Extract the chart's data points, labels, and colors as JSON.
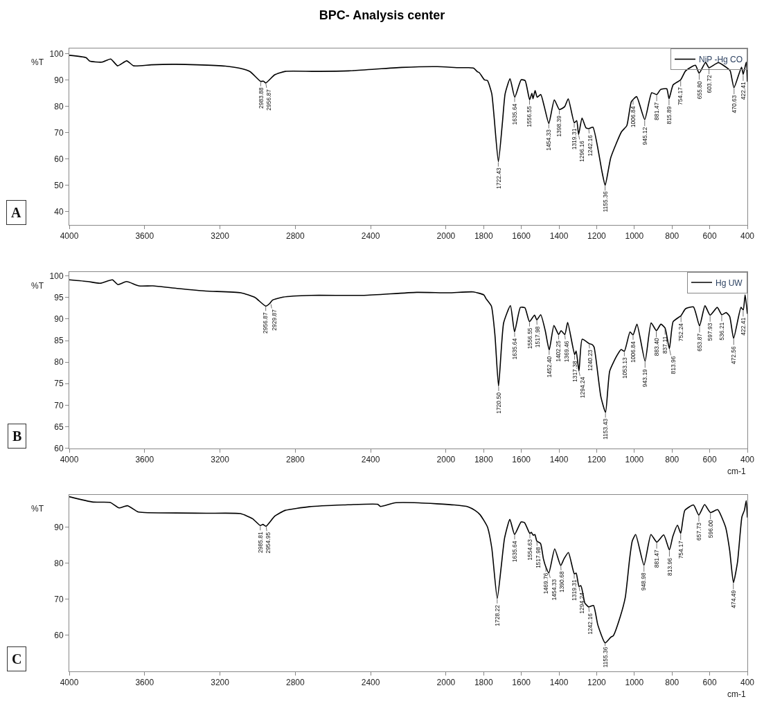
{
  "chart_data": [
    {
      "type": "line",
      "title": "BPC- Analysis center",
      "ylabel": "%T",
      "legend": "top right",
      "xlim": [
        4000,
        400
      ],
      "xticks": [
        4000,
        3600,
        3200,
        2800,
        2400,
        2000,
        1800,
        1600,
        1400,
        1200,
        1000,
        800,
        600,
        400
      ],
      "ylim": [
        35,
        102
      ],
      "yticks": [
        40,
        50,
        60,
        70,
        80,
        90,
        100
      ],
      "x": [
        4000,
        3911,
        3892,
        3827,
        3780,
        3743,
        3695,
        3658,
        3565,
        3453,
        3322,
        3171,
        3096,
        3040,
        2984,
        2969,
        2957,
        2909,
        2853,
        2703,
        2516,
        2234,
        2046,
        1929,
        1881,
        1853,
        1834,
        1823,
        1796,
        1780,
        1757,
        1722,
        1700,
        1686,
        1660,
        1635,
        1601,
        1580,
        1556,
        1544,
        1538,
        1527,
        1516,
        1497,
        1478,
        1454,
        1425,
        1398,
        1370,
        1351,
        1319,
        1306,
        1296,
        1278,
        1257,
        1242,
        1220,
        1172,
        1155,
        1125,
        1068,
        1040,
        1016,
        988,
        945,
        908,
        881,
        861,
        828,
        816,
        794,
        754,
        728,
        676,
        656,
        622,
        604,
        554,
        502,
        491,
        471,
        431,
        422,
        406,
        400
      ],
      "series": [
        {
          "name": "NiP -Hg CO",
          "color": "#000000",
          "values": [
            99.4,
            98.5,
            97.2,
            96.8,
            98.0,
            95.4,
            97.3,
            95.4,
            95.8,
            96.0,
            95.8,
            95.3,
            94.5,
            93.2,
            89.5,
            89.6,
            88.9,
            92.0,
            93.3,
            93.3,
            93.5,
            94.8,
            95.1,
            94.7,
            94.7,
            94.5,
            93.2,
            92.8,
            90.1,
            89.8,
            84.8,
            59.0,
            74.2,
            84.8,
            90.5,
            83.5,
            90.1,
            89.8,
            82.5,
            85.0,
            82.9,
            86.0,
            83.5,
            84.5,
            79.9,
            73.5,
            82.5,
            78.8,
            79.9,
            82.9,
            73.8,
            74.6,
            69.3,
            75.6,
            71.9,
            71.6,
            72.1,
            55.3,
            50.0,
            60.6,
            70.4,
            72.7,
            81.8,
            83.7,
            75.0,
            85.2,
            84.5,
            86.4,
            86.7,
            82.9,
            88.2,
            90.1,
            93.5,
            95.6,
            92.6,
            96.7,
            94.7,
            96.6,
            94.3,
            93.5,
            87.1,
            94.9,
            92.2,
            96.8,
            89.4
          ]
        }
      ],
      "annotations": [
        "A",
        {
          "text": "2983.88",
          "x": 2983.88,
          "y": 89.5
        },
        {
          "text": "2956.87",
          "x": 2956.87,
          "y": 88.9
        },
        {
          "text": "1722.43",
          "x": 1722.43,
          "y": 59.0
        },
        {
          "text": "1635.64",
          "x": 1635.64,
          "y": 83.5
        },
        {
          "text": "1556.55",
          "x": 1556.55,
          "y": 82.5
        },
        {
          "text": "1454.33",
          "x": 1454.33,
          "y": 73.5
        },
        {
          "text": "1398.39",
          "x": 1398.39,
          "y": 78.8
        },
        {
          "text": "1319.31",
          "x": 1319.31,
          "y": 73.8
        },
        {
          "text": "1296.16",
          "x": 1296.16,
          "y": 69.3
        },
        {
          "text": "1242.16",
          "x": 1242.16,
          "y": 71.6
        },
        {
          "text": "1155.36",
          "x": 1155.36,
          "y": 50.0
        },
        {
          "text": "1006.84",
          "x": 1006.84,
          "y": 82.5
        },
        {
          "text": "945.12",
          "x": 945.12,
          "y": 75.0
        },
        {
          "text": "881.47",
          "x": 881.47,
          "y": 84.5
        },
        {
          "text": "815.89",
          "x": 815.89,
          "y": 82.9
        },
        {
          "text": "754.17",
          "x": 754.17,
          "y": 90.1
        },
        {
          "text": "655.80",
          "x": 655.8,
          "y": 92.6
        },
        {
          "text": "603.72",
          "x": 603.72,
          "y": 94.7
        },
        {
          "text": "470.63",
          "x": 470.63,
          "y": 87.1
        },
        {
          "text": "422.41",
          "x": 422.41,
          "y": 92.2
        }
      ]
    },
    {
      "type": "line",
      "ylabel": "%T",
      "xlabel": "cm-1",
      "legend": "top right",
      "xlim": [
        4000,
        400
      ],
      "xticks": [
        4000,
        3600,
        3200,
        2800,
        2400,
        2000,
        1800,
        1600,
        1400,
        1200,
        1000,
        800,
        600,
        400
      ],
      "ylim": [
        60,
        101
      ],
      "yticks": [
        60,
        65,
        70,
        75,
        80,
        85,
        90,
        95,
        100
      ],
      "x": [
        4000,
        3901,
        3836,
        3771,
        3742,
        3696,
        3630,
        3556,
        3425,
        3275,
        3089,
        3014,
        2957,
        2936,
        2921,
        2865,
        2716,
        2435,
        2155,
        1986,
        1855,
        1799,
        1787,
        1759,
        1740,
        1721,
        1694,
        1658,
        1636,
        1605,
        1581,
        1557,
        1530,
        1518,
        1497,
        1473,
        1452,
        1427,
        1402,
        1389,
        1369,
        1354,
        1317,
        1309,
        1294,
        1277,
        1240,
        1225,
        1214,
        1178,
        1153,
        1131,
        1094,
        1070,
        1053,
        1023,
        1007,
        986,
        943,
        911,
        883,
        859,
        837,
        814,
        794,
        752,
        728,
        686,
        654,
        625,
        598,
        560,
        536,
        513,
        494,
        473,
        434,
        422,
        412,
        400
      ],
      "series": [
        {
          "name": "Hg UW",
          "color": "#000000",
          "values": [
            99.1,
            98.7,
            98.3,
            99.1,
            98.0,
            98.7,
            97.7,
            97.7,
            97.1,
            96.5,
            96.1,
            95.0,
            93.0,
            93.6,
            94.4,
            95.1,
            95.5,
            95.5,
            96.2,
            96.1,
            96.3,
            95.6,
            94.7,
            93.0,
            86.2,
            74.4,
            89.1,
            93.1,
            87.0,
            92.7,
            92.6,
            89.4,
            90.9,
            89.8,
            91.0,
            87.3,
            82.8,
            88.5,
            86.4,
            87.3,
            86.4,
            89.2,
            81.7,
            82.6,
            77.9,
            85.3,
            84.3,
            84.1,
            83.5,
            72.0,
            68.3,
            77.9,
            81.4,
            82.9,
            82.5,
            87.0,
            86.3,
            88.8,
            80.2,
            89.1,
            87.3,
            88.8,
            87.9,
            83.1,
            89.4,
            90.8,
            92.4,
            92.8,
            88.4,
            93.1,
            90.9,
            92.7,
            91.0,
            91.5,
            90.6,
            85.5,
            92.7,
            92.1,
            95.6,
            91.2
          ]
        }
      ],
      "annotations": [
        "B",
        {
          "text": "2956.87",
          "x": 2956.87,
          "y": 93.0
        },
        {
          "text": "2929.87",
          "x": 2929.87,
          "y": 93.6
        },
        {
          "text": "1720.50",
          "x": 1720.5,
          "y": 74.4
        },
        {
          "text": "1635.64",
          "x": 1635.64,
          "y": 87.0
        },
        {
          "text": "1556.55",
          "x": 1556.55,
          "y": 89.4
        },
        {
          "text": "1517.98",
          "x": 1517.98,
          "y": 89.8
        },
        {
          "text": "1452.40",
          "x": 1452.4,
          "y": 82.8
        },
        {
          "text": "1402.25",
          "x": 1402.25,
          "y": 86.4
        },
        {
          "text": "1369.46",
          "x": 1369.46,
          "y": 86.4
        },
        {
          "text": "1317.38",
          "x": 1317.38,
          "y": 81.7
        },
        {
          "text": "1294.24",
          "x": 1294.24,
          "y": 77.9
        },
        {
          "text": "1240.23",
          "x": 1240.23,
          "y": 84.3
        },
        {
          "text": "1153.43",
          "x": 1153.43,
          "y": 68.3
        },
        {
          "text": "1053.13",
          "x": 1053.13,
          "y": 82.5
        },
        {
          "text": "1006.84",
          "x": 1006.84,
          "y": 86.3
        },
        {
          "text": "943.19",
          "x": 943.19,
          "y": 80.2
        },
        {
          "text": "883.40",
          "x": 883.4,
          "y": 87.3
        },
        {
          "text": "837.11",
          "x": 837.11,
          "y": 87.9
        },
        {
          "text": "813.96",
          "x": 813.96,
          "y": 83.1
        },
        {
          "text": "752.24",
          "x": 752.24,
          "y": 90.8
        },
        {
          "text": "653.87",
          "x": 653.87,
          "y": 88.4
        },
        {
          "text": "597.93",
          "x": 597.93,
          "y": 90.9
        },
        {
          "text": "536.21",
          "x": 536.21,
          "y": 91.0
        },
        {
          "text": "472.56",
          "x": 472.56,
          "y": 85.5
        },
        {
          "text": "422.41",
          "x": 422.41,
          "y": 92.1
        }
      ]
    },
    {
      "type": "line",
      "ylabel": "%T",
      "xlabel": "cm-1",
      "xlim": [
        4000,
        400
      ],
      "xticks": [
        4000,
        3600,
        3200,
        2800,
        2400,
        2000,
        1800,
        1600,
        1400,
        1200,
        1000,
        800,
        600,
        400
      ],
      "ylim": [
        50,
        99
      ],
      "yticks": [
        60,
        70,
        80,
        90
      ],
      "x": [
        4000,
        3873,
        3782,
        3736,
        3691,
        3636,
        3600,
        3272,
        3091,
        3027,
        2986,
        2972,
        2955,
        2909,
        2854,
        2727,
        2545,
        2363,
        2348,
        2272,
        2144,
        1956,
        1883,
        1846,
        1819,
        1780,
        1757,
        1728,
        1707,
        1689,
        1661,
        1636,
        1601,
        1583,
        1555,
        1547,
        1537,
        1528,
        1518,
        1498,
        1483,
        1470,
        1454,
        1423,
        1391,
        1373,
        1350,
        1319,
        1309,
        1294,
        1284,
        1272,
        1263,
        1242,
        1217,
        1194,
        1155,
        1125,
        1112,
        1075,
        1048,
        1025,
        1011,
        993,
        949,
        912,
        881,
        844,
        814,
        796,
        771,
        754,
        732,
        686,
        658,
        627,
        596,
        558,
        516,
        494,
        474,
        452,
        429,
        416,
        406,
        400
      ],
      "series": [
        {
          "color": "#000000",
          "values": [
            98.5,
            97.0,
            96.9,
            95.4,
            96.0,
            94.3,
            94.1,
            93.9,
            93.8,
            92.4,
            90.5,
            90.8,
            90.3,
            93.1,
            94.7,
            95.7,
            96.2,
            96.4,
            95.8,
            96.8,
            96.8,
            96.2,
            95.7,
            94.7,
            93.5,
            90.1,
            84.3,
            70.2,
            79.0,
            87.0,
            92.2,
            88.0,
            91.5,
            91.3,
            88.3,
            88.6,
            87.8,
            88.0,
            86.2,
            85.5,
            81.3,
            79.0,
            77.3,
            84.0,
            79.4,
            81.3,
            83.0,
            77.1,
            77.3,
            73.6,
            73.8,
            71.3,
            69.0,
            67.9,
            68.3,
            62.9,
            57.9,
            59.5,
            59.9,
            65.2,
            70.6,
            81.3,
            86.2,
            88.0,
            79.5,
            88.0,
            85.9,
            87.9,
            83.7,
            87.4,
            90.6,
            88.3,
            94.7,
            96.2,
            93.4,
            96.3,
            94.1,
            94.9,
            90.1,
            83.6,
            74.6,
            80.5,
            92.9,
            94.7,
            97.4,
            92.7
          ]
        }
      ],
      "annotations": [
        "C",
        {
          "text": "2985.81",
          "x": 2985.81,
          "y": 90.5
        },
        {
          "text": "2954.95",
          "x": 2954.95,
          "y": 90.3
        },
        {
          "text": "1728.22",
          "x": 1728.22,
          "y": 70.2
        },
        {
          "text": "1635.64",
          "x": 1635.64,
          "y": 88.0
        },
        {
          "text": "1554.63",
          "x": 1554.63,
          "y": 88.3
        },
        {
          "text": "1517.98",
          "x": 1517.98,
          "y": 86.2
        },
        {
          "text": "1469.76",
          "x": 1469.76,
          "y": 79.0
        },
        {
          "text": "1454.33",
          "x": 1454.33,
          "y": 77.3
        },
        {
          "text": "1390.68",
          "x": 1390.68,
          "y": 79.4
        },
        {
          "text": "1319.31",
          "x": 1319.31,
          "y": 77.1
        },
        {
          "text": "1294.24",
          "x": 1294.24,
          "y": 73.6
        },
        {
          "text": "1242.16",
          "x": 1242.16,
          "y": 67.9
        },
        {
          "text": "1155.36",
          "x": 1155.36,
          "y": 57.9
        },
        {
          "text": "948.98",
          "x": 948.98,
          "y": 79.5
        },
        {
          "text": "881.47",
          "x": 881.47,
          "y": 85.9
        },
        {
          "text": "813.96",
          "x": 813.96,
          "y": 83.7
        },
        {
          "text": "754.17",
          "x": 754.17,
          "y": 88.3
        },
        {
          "text": "657.73",
          "x": 657.73,
          "y": 93.4
        },
        {
          "text": "596.00",
          "x": 596.0,
          "y": 94.1
        },
        {
          "text": "474.49",
          "x": 474.49,
          "y": 74.6
        }
      ]
    }
  ]
}
